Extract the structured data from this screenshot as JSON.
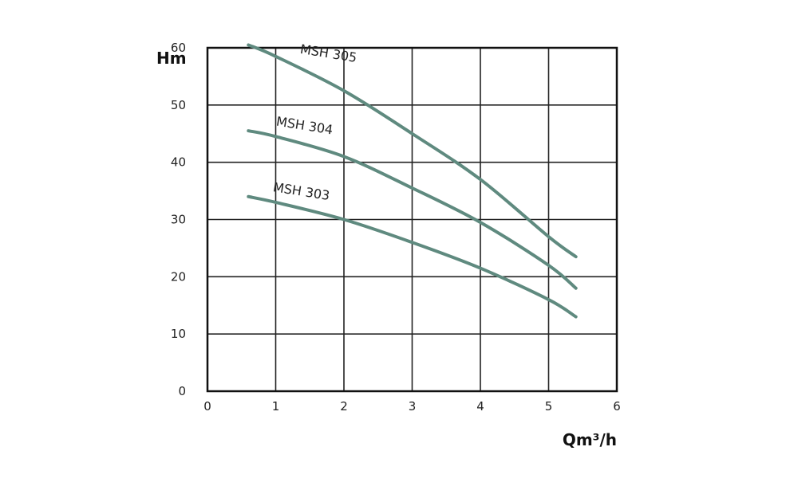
{
  "chart_data": {
    "type": "line",
    "ylabel": "Hm",
    "xlabel": "Qm³/h",
    "xlim": [
      0,
      6
    ],
    "ylim": [
      0,
      60
    ],
    "xticks": [
      0,
      1,
      2,
      3,
      4,
      5,
      6
    ],
    "yticks": [
      0,
      10,
      20,
      30,
      40,
      50,
      60
    ],
    "grid": true,
    "series": [
      {
        "name": "MSH 305",
        "color": "#5f8a7f",
        "x": [
          0.6,
          1,
          2,
          3,
          4,
          5,
          5.4
        ],
        "y": [
          60.5,
          58.5,
          52.5,
          45,
          37,
          27,
          23.5
        ]
      },
      {
        "name": "MSH 304",
        "color": "#5f8a7f",
        "x": [
          0.6,
          1,
          2,
          3,
          4,
          5,
          5.4
        ],
        "y": [
          45.5,
          44.5,
          41,
          35.5,
          29.5,
          22,
          18
        ]
      },
      {
        "name": "MSH 303",
        "color": "#5f8a7f",
        "x": [
          0.6,
          1,
          2,
          3,
          4,
          5,
          5.4
        ],
        "y": [
          34,
          33,
          30,
          26,
          21.5,
          16,
          13
        ]
      }
    ]
  }
}
